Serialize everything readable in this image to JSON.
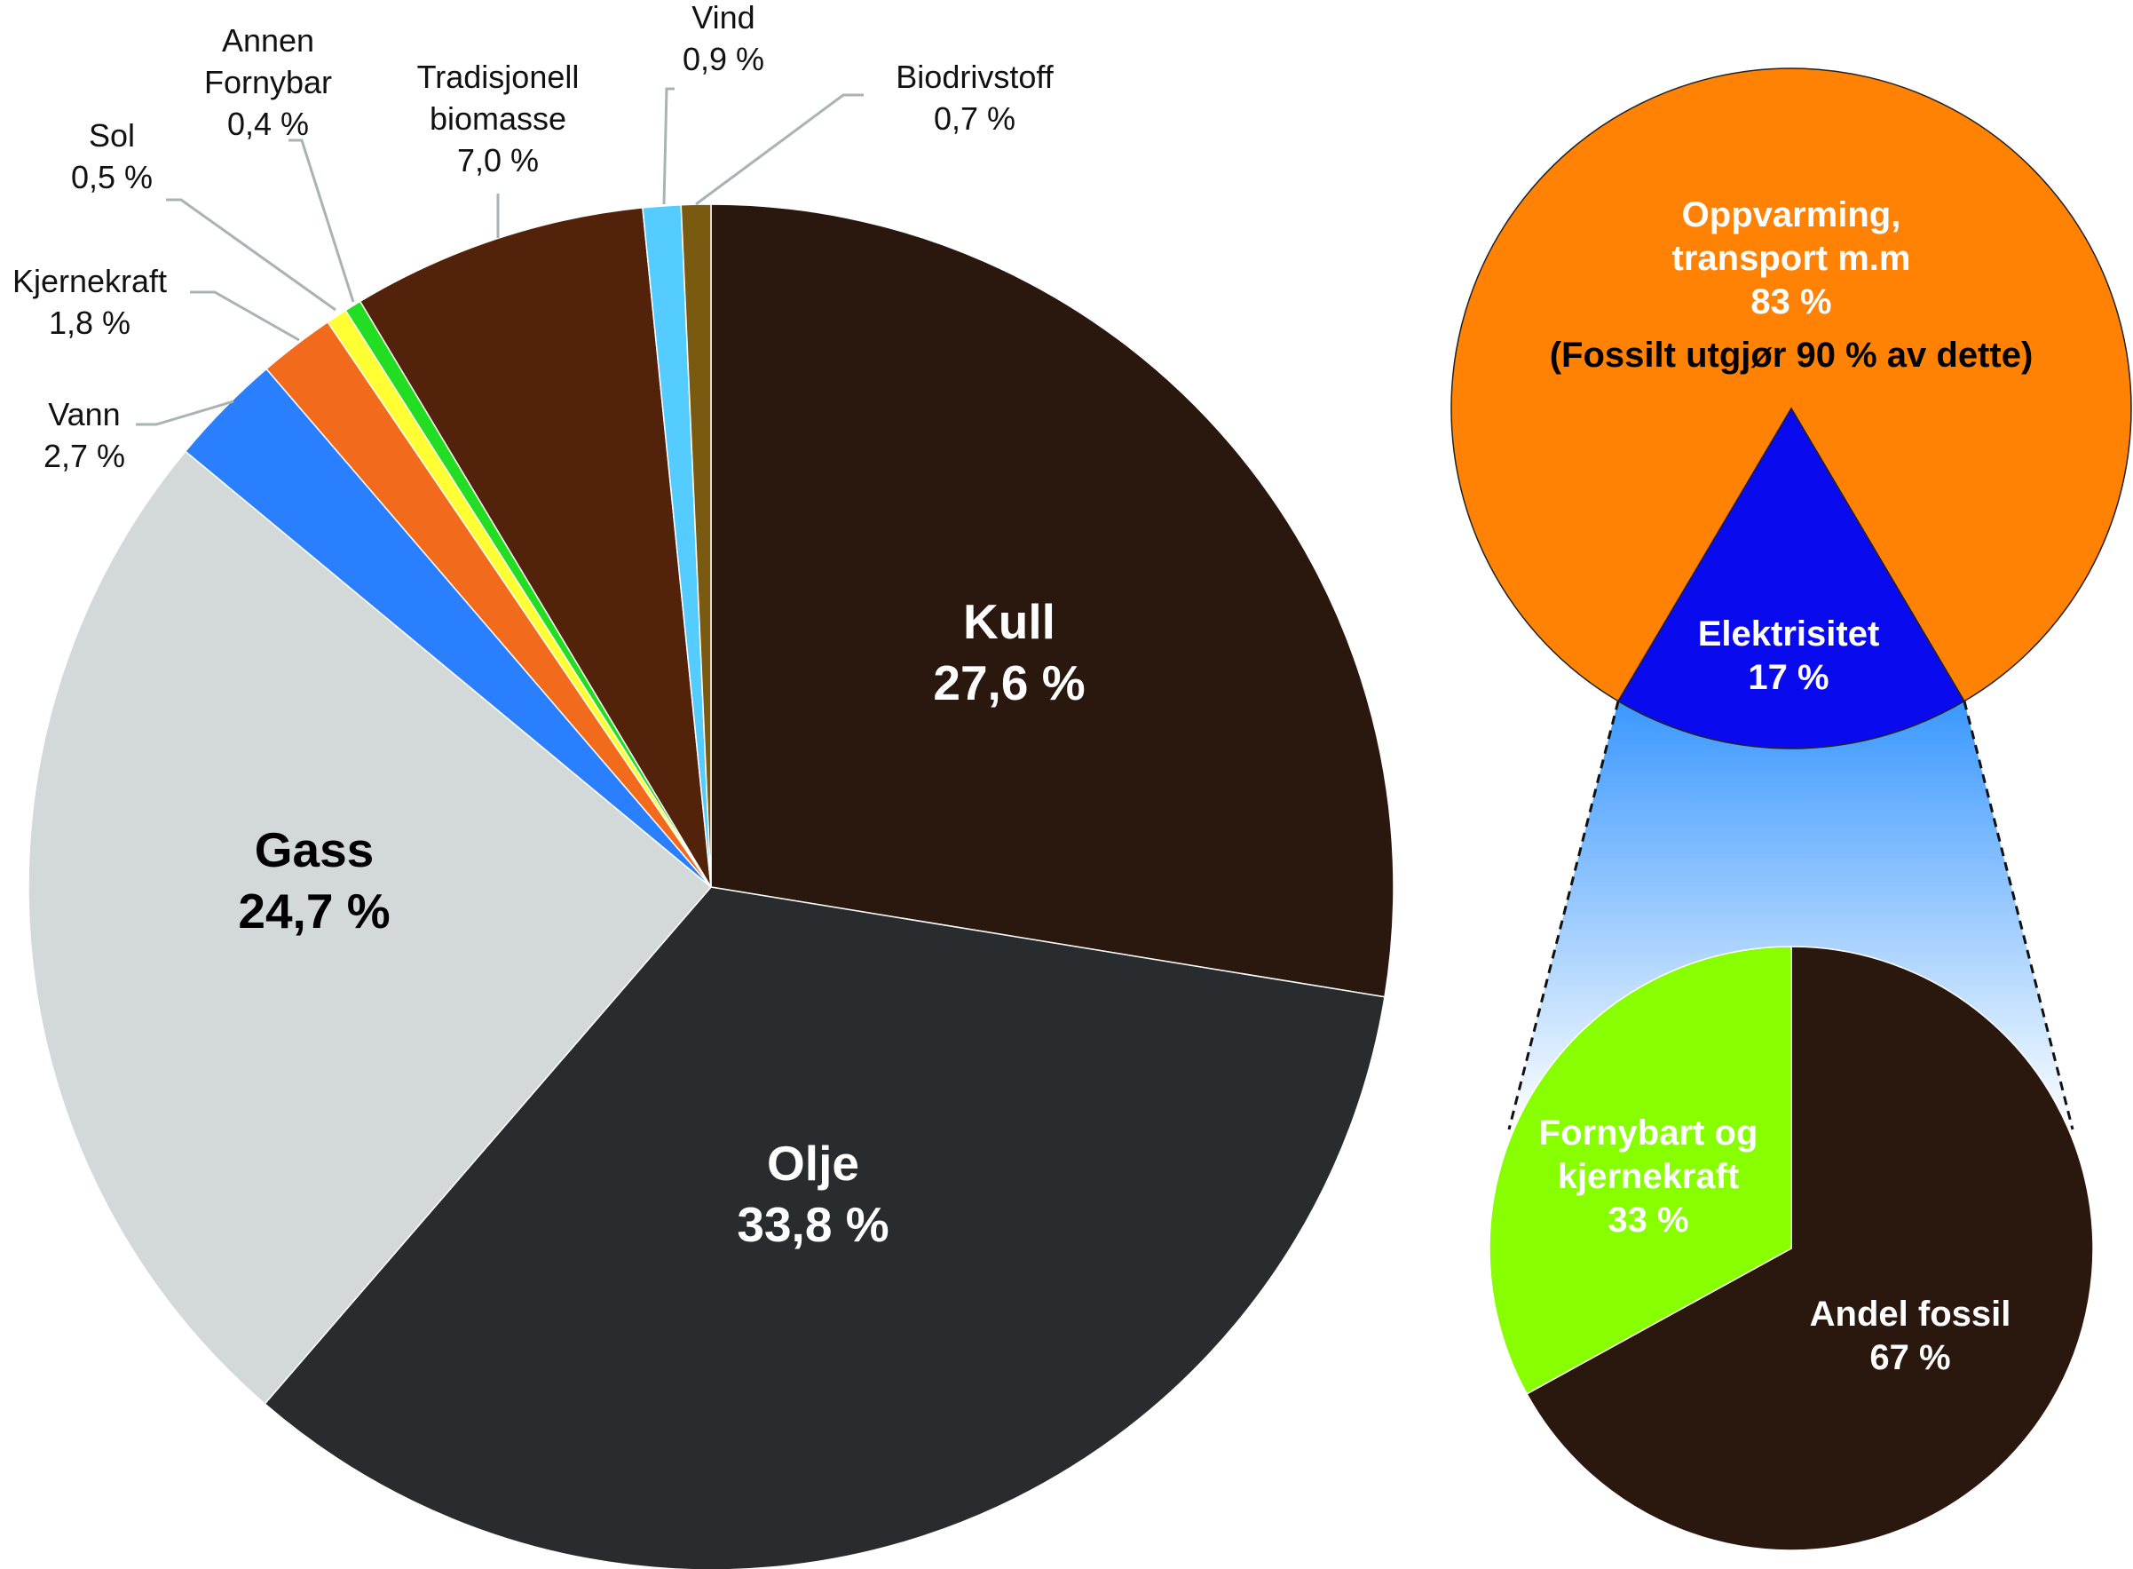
{
  "chart_data": [
    {
      "type": "pie",
      "title": "",
      "start": "top",
      "direction": "clockwise",
      "slices": [
        {
          "label": "Kull",
          "value": 27.6,
          "text": "27,6 %",
          "color": "#2a170d"
        },
        {
          "label": "Olje",
          "value": 33.8,
          "text": "33,8 %",
          "color": "#292c2e"
        },
        {
          "label": "Gass",
          "value": 24.7,
          "text": "24,7 %",
          "color": "#d3d9d9"
        },
        {
          "label": "Vann",
          "value": 2.7,
          "text": "2,7 %",
          "color": "#2a7fff"
        },
        {
          "label": "Kjernekraft",
          "value": 1.8,
          "text": "1,8 %",
          "color": "#f26a1b"
        },
        {
          "label": "Sol",
          "value": 0.5,
          "text": "0,5 %",
          "color": "#ffff33"
        },
        {
          "label": "Annen Fornybar",
          "label_lines": [
            "Annen",
            "Fornybar"
          ],
          "value": 0.4,
          "text": "0,4 %",
          "color": "#22dd22"
        },
        {
          "label": "Tradisjonell biomasse",
          "label_lines": [
            "Tradisjonell",
            "biomasse"
          ],
          "value": 7.0,
          "text": "7,0 %",
          "color": "#52220a"
        },
        {
          "label": "Vind",
          "value": 0.9,
          "text": "0,9 %",
          "color": "#55ccff"
        },
        {
          "label": "Biodrivstoff",
          "value": 0.7,
          "text": "0,7 %",
          "color": "#7a5a10"
        }
      ]
    },
    {
      "type": "pie",
      "slices": [
        {
          "label": "Oppvarming, transport m.m",
          "label_lines": [
            "Oppvarming,",
            "transport m.m"
          ],
          "value": 83,
          "text": "83 %",
          "note": "(Fossilt utgjør 90 % av dette)",
          "color": "#ff8205"
        },
        {
          "label": "Elektrisitet",
          "value": 17,
          "text": "17 %",
          "color": "#0a0aee"
        }
      ]
    },
    {
      "type": "pie",
      "slices": [
        {
          "label": "Andel fossil",
          "value": 67,
          "text": "67 %",
          "color": "#2a170d"
        },
        {
          "label": "Fornybart og kjernekraft",
          "label_lines": [
            "Fornybart og",
            "kjernekraft"
          ],
          "value": 33,
          "text": "33 %",
          "color": "#88ff00"
        }
      ]
    }
  ]
}
